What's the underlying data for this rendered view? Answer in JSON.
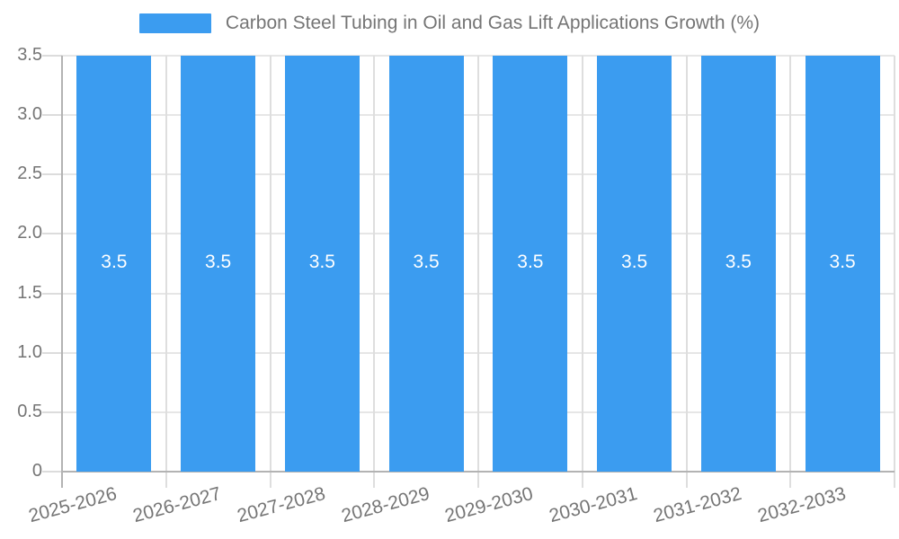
{
  "chart_data": {
    "type": "bar",
    "title": "Carbon Steel Tubing in Oil and Gas Lift Applications Growth (%)",
    "legend": {
      "position": "top",
      "entries": [
        "Carbon Steel Tubing in Oil and Gas Lift Applications Growth (%)"
      ]
    },
    "categories": [
      "2025-2026",
      "2026-2027",
      "2027-2028",
      "2028-2029",
      "2029-2030",
      "2030-2031",
      "2031-2032",
      "2032-2033"
    ],
    "series": [
      {
        "name": "Carbon Steel Tubing in Oil and Gas Lift Applications Growth (%)",
        "values": [
          3.5,
          3.5,
          3.5,
          3.5,
          3.5,
          3.5,
          3.5,
          3.5
        ],
        "data_labels": [
          "3.5",
          "3.5",
          "3.5",
          "3.5",
          "3.5",
          "3.5",
          "3.5",
          "3.5"
        ]
      }
    ],
    "xlabel": "",
    "ylabel": "",
    "ylim": [
      0,
      3.5
    ],
    "yticks": [
      {
        "value": 0,
        "label": "0"
      },
      {
        "value": 0.5,
        "label": "0.5"
      },
      {
        "value": 1.0,
        "label": "1.0"
      },
      {
        "value": 1.5,
        "label": "1.5"
      },
      {
        "value": 2.0,
        "label": "2.0"
      },
      {
        "value": 2.5,
        "label": "2.5"
      },
      {
        "value": 3.0,
        "label": "3.0"
      },
      {
        "value": 3.5,
        "label": "3.5"
      }
    ],
    "grid": true,
    "colors": {
      "bar": "#3B9CF0",
      "bar_label_text": "#ffffff",
      "axis_text": "#757575",
      "legend_text": "#757575",
      "gridline": "#e6e6e6",
      "axis_line": "#b3b3b3",
      "background": "#ffffff"
    }
  }
}
